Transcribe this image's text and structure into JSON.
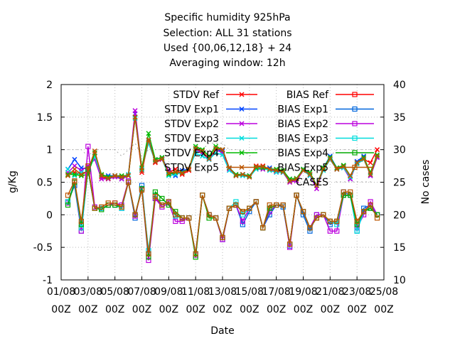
{
  "chart_data": {
    "type": "line",
    "title_lines": [
      "Specific humidity 925hPa",
      "Selection: ALL     31 stations",
      "Used {00,06,12,18} + 24",
      "Averaging window: 12h"
    ],
    "xlabel": "Date",
    "ylabel": "g/Kg",
    "y2label": "No cases",
    "ylim": [
      -1,
      2
    ],
    "y2lim": [
      10,
      40
    ],
    "yticks": [
      "-1",
      "-0.5",
      "0",
      "0.5",
      "1",
      "1.5",
      "2"
    ],
    "y2ticks": [
      "10",
      "15",
      "20",
      "25",
      "30",
      "35",
      "40"
    ],
    "xticks": [
      {
        "top": "01/08",
        "bottom": "00Z"
      },
      {
        "top": "03/08",
        "bottom": "00Z"
      },
      {
        "top": "05/08",
        "bottom": "00Z"
      },
      {
        "top": "07/08",
        "bottom": "00Z"
      },
      {
        "top": "09/08",
        "bottom": "00Z"
      },
      {
        "top": "11/08",
        "bottom": "00Z"
      },
      {
        "top": "13/08",
        "bottom": "00Z"
      },
      {
        "top": "15/08",
        "bottom": "00Z"
      },
      {
        "top": "17/08",
        "bottom": "00Z"
      },
      {
        "top": "19/08",
        "bottom": "00Z"
      },
      {
        "top": "21/08",
        "bottom": "00Z"
      },
      {
        "top": "23/08",
        "bottom": "00Z"
      },
      {
        "top": "25/08",
        "bottom": "00Z"
      }
    ],
    "x_days": [
      1.5,
      2,
      2.5,
      3,
      3.5,
      4,
      4.5,
      5,
      5.5,
      6,
      6.5,
      7,
      7.5,
      8,
      8.5,
      9,
      9.5,
      10,
      10.5,
      11,
      11.5,
      12,
      12.5,
      13,
      13.5,
      14,
      14.5,
      15,
      15.5,
      16,
      16.5,
      17,
      17.5,
      18,
      18.5,
      19,
      19.5,
      20,
      20.5,
      21,
      21.5,
      22,
      22.5,
      23,
      23.5,
      24,
      24.5
    ],
    "grid": true,
    "legend_placement": "top-right, two columns",
    "series": [
      {
        "name": "STDV Ref",
        "color": "#ff0000",
        "marker": "x",
        "values": [
          0.62,
          0.65,
          0.62,
          0.66,
          0.95,
          0.58,
          0.55,
          0.6,
          0.58,
          0.6,
          1.5,
          0.65,
          1.15,
          0.8,
          0.85,
          0.65,
          0.7,
          0.62,
          0.68,
          1.0,
          0.98,
          0.85,
          1.0,
          1.0,
          0.72,
          0.6,
          0.62,
          0.58,
          0.75,
          0.75,
          0.7,
          0.67,
          0.65,
          0.5,
          0.55,
          0.68,
          0.62,
          0.45,
          0.7,
          0.85,
          0.7,
          0.75,
          0.6,
          0.78,
          0.85,
          0.8,
          1.0
        ]
      },
      {
        "name": "STDV Exp1",
        "color": "#0044ff",
        "marker": "x",
        "values": [
          0.7,
          0.85,
          0.72,
          0.7,
          0.9,
          0.6,
          0.6,
          0.6,
          0.55,
          0.6,
          1.55,
          0.68,
          1.15,
          0.85,
          0.88,
          0.66,
          0.6,
          0.68,
          0.7,
          1.0,
          0.95,
          0.88,
          1.0,
          0.98,
          0.72,
          0.62,
          0.6,
          0.6,
          0.72,
          0.72,
          0.72,
          0.68,
          0.65,
          0.55,
          0.55,
          0.7,
          0.62,
          0.45,
          0.72,
          0.9,
          0.72,
          0.75,
          0.55,
          0.82,
          0.9,
          0.6,
          0.88
        ]
      },
      {
        "name": "STDV Exp2",
        "color": "#bb00dd",
        "marker": "x",
        "values": [
          0.65,
          0.75,
          0.68,
          0.75,
          0.85,
          0.55,
          0.55,
          0.58,
          0.55,
          0.6,
          1.6,
          0.7,
          1.12,
          0.82,
          0.85,
          0.68,
          0.62,
          0.65,
          0.7,
          1.0,
          0.95,
          0.85,
          1.0,
          0.95,
          0.7,
          0.6,
          0.62,
          0.6,
          0.7,
          0.7,
          0.7,
          0.66,
          0.65,
          0.5,
          0.52,
          0.68,
          0.6,
          0.4,
          0.7,
          0.85,
          0.7,
          0.72,
          0.55,
          0.8,
          0.88,
          0.6,
          0.88
        ]
      },
      {
        "name": "STDV Exp3",
        "color": "#00dddd",
        "marker": "x",
        "values": [
          0.7,
          0.6,
          0.65,
          0.65,
          0.9,
          0.6,
          0.58,
          0.6,
          0.58,
          0.62,
          1.48,
          0.7,
          1.1,
          0.82,
          0.86,
          0.6,
          0.62,
          0.65,
          0.7,
          0.95,
          0.9,
          0.85,
          0.95,
          0.92,
          0.68,
          0.6,
          0.6,
          0.58,
          0.7,
          0.72,
          0.68,
          0.65,
          0.65,
          0.52,
          0.55,
          0.68,
          0.6,
          0.45,
          0.68,
          0.85,
          0.7,
          0.72,
          0.58,
          0.78,
          0.85,
          0.62,
          0.9
        ]
      },
      {
        "name": "STDV Exp4",
        "color": "#00bb00",
        "marker": "x",
        "values": [
          0.62,
          0.62,
          0.6,
          0.62,
          0.95,
          0.62,
          0.58,
          0.6,
          0.6,
          0.6,
          1.5,
          0.72,
          1.25,
          0.85,
          0.88,
          0.62,
          0.65,
          0.65,
          0.7,
          1.05,
          1.0,
          0.9,
          1.05,
          1.0,
          0.72,
          0.62,
          0.62,
          0.6,
          0.72,
          0.72,
          0.7,
          0.7,
          0.68,
          0.55,
          0.56,
          0.7,
          0.65,
          0.45,
          0.72,
          0.88,
          0.72,
          0.76,
          0.6,
          0.8,
          0.88,
          0.65,
          0.92
        ]
      },
      {
        "name": "STDV Exp5",
        "color": "#bb5500",
        "marker": "x",
        "values": [
          0.6,
          0.7,
          0.62,
          0.68,
          0.98,
          0.6,
          0.56,
          0.6,
          0.58,
          0.6,
          1.5,
          0.68,
          1.15,
          0.82,
          0.86,
          0.64,
          0.66,
          0.64,
          0.7,
          1.02,
          0.98,
          0.86,
          1.02,
          1.0,
          0.72,
          0.6,
          0.62,
          0.58,
          0.74,
          0.74,
          0.7,
          0.68,
          0.66,
          0.52,
          0.55,
          0.68,
          0.62,
          0.45,
          0.7,
          0.86,
          0.7,
          0.74,
          0.6,
          0.8,
          0.86,
          0.62,
          0.9
        ]
      },
      {
        "name": "BIAS Ref",
        "color": "#ff0000",
        "marker": "square",
        "values": [
          0.2,
          0.5,
          -0.2,
          0.7,
          0.1,
          0.1,
          0.15,
          0.15,
          0.1,
          0.5,
          0.0,
          0.4,
          -0.6,
          0.3,
          0.15,
          0.2,
          0.0,
          -0.05,
          -0.05,
          -0.6,
          0.3,
          0.0,
          -0.05,
          -0.35,
          0.1,
          0.15,
          0.05,
          0.1,
          0.2,
          -0.2,
          0.1,
          0.15,
          0.15,
          -0.45,
          0.3,
          0.05,
          -0.2,
          -0.05,
          0.0,
          -0.1,
          -0.1,
          0.3,
          0.3,
          -0.15,
          0.05,
          0.1,
          0.0
        ]
      },
      {
        "name": "BIAS Exp1",
        "color": "#0066dd",
        "marker": "square",
        "values": [
          0.2,
          0.45,
          -0.25,
          0.7,
          0.1,
          0.1,
          0.15,
          0.15,
          0.1,
          0.5,
          -0.05,
          0.45,
          -0.6,
          0.25,
          0.15,
          0.2,
          0.0,
          -0.05,
          -0.05,
          -0.6,
          0.3,
          0.0,
          -0.05,
          -0.38,
          0.1,
          0.15,
          -0.15,
          0.05,
          0.2,
          -0.2,
          0.0,
          0.15,
          0.12,
          -0.48,
          0.3,
          0.0,
          -0.25,
          0.0,
          0.0,
          -0.15,
          -0.1,
          0.35,
          0.3,
          -0.25,
          0.1,
          0.15,
          0.0
        ]
      },
      {
        "name": "BIAS Exp2",
        "color": "#bb00dd",
        "marker": "square",
        "values": [
          0.18,
          0.5,
          -0.25,
          1.05,
          0.12,
          0.1,
          0.15,
          0.18,
          0.15,
          0.52,
          -0.02,
          0.4,
          -0.7,
          0.25,
          0.12,
          0.18,
          -0.1,
          -0.1,
          -0.05,
          -0.62,
          0.3,
          0.0,
          -0.05,
          -0.38,
          0.1,
          0.15,
          -0.1,
          0.1,
          0.2,
          -0.2,
          0.05,
          0.15,
          0.15,
          -0.5,
          0.3,
          0.05,
          -0.2,
          0.0,
          0.0,
          -0.25,
          -0.25,
          0.3,
          0.3,
          -0.2,
          0.0,
          0.2,
          0.0
        ]
      },
      {
        "name": "BIAS Exp3",
        "color": "#00dddd",
        "marker": "square",
        "values": [
          0.2,
          0.5,
          -0.2,
          0.7,
          0.1,
          0.1,
          0.15,
          0.15,
          0.1,
          0.5,
          0.0,
          0.4,
          -0.55,
          0.3,
          0.15,
          0.2,
          -0.02,
          -0.05,
          -0.05,
          -0.6,
          0.3,
          0.0,
          -0.05,
          -0.35,
          0.1,
          0.2,
          0.0,
          0.1,
          0.2,
          -0.2,
          0.1,
          0.15,
          0.15,
          -0.45,
          0.3,
          0.05,
          -0.2,
          -0.05,
          0.0,
          -0.1,
          -0.15,
          0.3,
          0.3,
          -0.25,
          0.05,
          0.1,
          0.0
        ]
      },
      {
        "name": "BIAS Exp4",
        "color": "#00aa00",
        "marker": "square",
        "values": [
          0.15,
          0.5,
          -0.15,
          0.7,
          0.1,
          0.08,
          0.15,
          0.15,
          0.12,
          0.5,
          0.0,
          0.4,
          -0.65,
          0.35,
          0.25,
          0.15,
          0.05,
          -0.05,
          -0.05,
          -0.65,
          0.3,
          -0.05,
          -0.05,
          -0.35,
          0.1,
          0.15,
          0.05,
          0.1,
          0.2,
          -0.2,
          0.1,
          0.15,
          0.15,
          -0.45,
          0.3,
          0.05,
          -0.2,
          -0.05,
          0.0,
          -0.1,
          -0.1,
          0.3,
          0.3,
          -0.15,
          0.05,
          0.1,
          0.0
        ]
      },
      {
        "name": "BIAS Exp5",
        "color": "#bb5500",
        "marker": "square",
        "values": [
          0.3,
          0.52,
          -0.1,
          0.75,
          0.1,
          0.12,
          0.18,
          0.18,
          0.12,
          0.5,
          0.0,
          0.38,
          -0.6,
          0.28,
          0.15,
          0.2,
          0.0,
          -0.05,
          -0.05,
          -0.6,
          0.3,
          0.0,
          -0.05,
          -0.35,
          0.1,
          0.15,
          0.05,
          0.1,
          0.2,
          -0.2,
          0.15,
          0.15,
          0.15,
          -0.45,
          0.3,
          0.05,
          -0.2,
          -0.05,
          0.0,
          -0.1,
          -0.1,
          0.35,
          0.35,
          -0.1,
          0.05,
          0.15,
          -0.05
        ]
      },
      {
        "name": "CASES",
        "color": "#aaaaaa",
        "marker": "none",
        "axis": "right",
        "values": [
          30,
          30,
          30,
          29,
          30,
          30,
          30,
          30,
          29,
          30,
          31,
          29,
          30,
          30,
          30,
          30,
          30,
          30,
          30,
          30,
          30,
          31,
          31,
          31,
          30,
          30,
          30,
          29,
          30,
          30,
          30,
          30,
          30,
          30,
          30,
          30,
          30,
          30,
          30,
          29,
          30,
          30,
          30,
          30,
          30,
          30,
          30
        ]
      }
    ]
  }
}
